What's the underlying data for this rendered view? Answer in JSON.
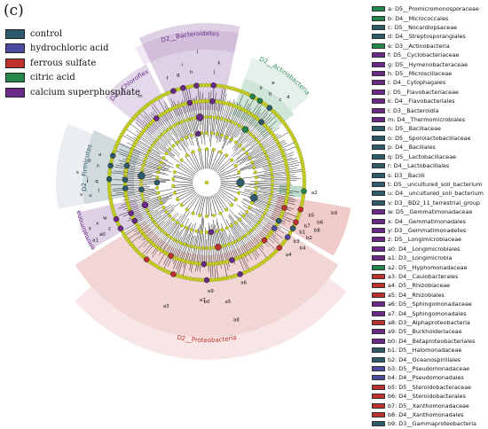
{
  "panel_label": "(c)",
  "colors": {
    "control": "#2e5b6b",
    "hydrochloric_acid": "#4c4ba0",
    "ferrous_sulfate": "#c0302c",
    "citric_acid": "#24874a",
    "calcium_superphosphate": "#6b2a8a",
    "node_yellow": "#c8d21e",
    "branch": "#111111"
  },
  "groups": [
    {
      "label": "control",
      "color": "#2e5b6b"
    },
    {
      "label": "hydrochloric acid",
      "color": "#4c4ba0"
    },
    {
      "label": "ferrous sulfate",
      "color": "#c0302c"
    },
    {
      "label": "citric acid",
      "color": "#24874a"
    },
    {
      "label": "calcium superphosphate",
      "color": "#6b2a8a"
    }
  ],
  "clade_labels": {
    "actinobacteria": "D2__Actinobacteria",
    "bacteroidetes": "D2__Bacteroidetes",
    "chloroflexi": "D2__Chloroflexi",
    "firmicutes": "D2__Firmicutes",
    "gemmatimonadetes": "D2__Gemmatimonadetes",
    "proteobacteria": "D2__Proteobacteria"
  },
  "taxa": [
    {
      "key": "a",
      "label": "a:  D5__Promicromonosporaceae",
      "color": "#24874a"
    },
    {
      "key": "b",
      "label": "b:  D4__Micrococcales",
      "color": "#24874a"
    },
    {
      "key": "c",
      "label": "c:  D5__Nocardiopsaceae",
      "color": "#2e5b6b"
    },
    {
      "key": "d",
      "label": "d:  D4__Streptosporangiales",
      "color": "#2e5b6b"
    },
    {
      "key": "e",
      "label": "e:  D3__Actinobacteria",
      "color": "#24874a"
    },
    {
      "key": "f",
      "label": "f:  D5__Cyclobacteriaceae",
      "color": "#6b2a8a"
    },
    {
      "key": "g",
      "label": "g:  D5__Hymenobacteraceae",
      "color": "#6b2a8a"
    },
    {
      "key": "h",
      "label": "h:  D5__Microscillaceae",
      "color": "#6b2a8a"
    },
    {
      "key": "i",
      "label": "i:  D4__Cytophagales",
      "color": "#6b2a8a"
    },
    {
      "key": "j",
      "label": "j:  D5__Flavobacteriaceae",
      "color": "#6b2a8a"
    },
    {
      "key": "k",
      "label": "k:  D4__Flavobacteriales",
      "color": "#6b2a8a"
    },
    {
      "key": "l",
      "label": "l:  D3__Bacteroidia",
      "color": "#6b2a8a"
    },
    {
      "key": "m",
      "label": "m:  D4__Thermomicrobiales",
      "color": "#6b2a8a"
    },
    {
      "key": "n",
      "label": "n:  D5__Bacillaceae",
      "color": "#2e5b6b"
    },
    {
      "key": "o",
      "label": "o:  D5__Sporolactobacillaceae",
      "color": "#2e5b6b"
    },
    {
      "key": "p",
      "label": "p:  D4__Bacillales",
      "color": "#2e5b6b"
    },
    {
      "key": "q",
      "label": "q:  D5__Lactobacillaceae",
      "color": "#2e5b6b"
    },
    {
      "key": "r",
      "label": "r:  D4__Lactobacillales",
      "color": "#2e5b6b"
    },
    {
      "key": "s",
      "label": "s:  D3__Bacilli",
      "color": "#2e5b6b"
    },
    {
      "key": "t",
      "label": "t:  D5__uncultured_soil_bacterium",
      "color": "#2e5b6b"
    },
    {
      "key": "u",
      "label": "u:  D4__uncultured_soil_bacterium",
      "color": "#2e5b6b"
    },
    {
      "key": "v",
      "label": "v:  D3__BD2_11_terrestrial_group",
      "color": "#2e5b6b"
    },
    {
      "key": "w",
      "label": "w:  D5__Gemmatimonadaceae",
      "color": "#6b2a8a"
    },
    {
      "key": "x",
      "label": "x:  D4__Gemmatimonadales",
      "color": "#6b2a8a"
    },
    {
      "key": "y",
      "label": "y:  D3__Gemmatimonadetes",
      "color": "#6b2a8a"
    },
    {
      "key": "z",
      "label": "z:  D5__Longimicrobiaceae",
      "color": "#6b2a8a"
    },
    {
      "key": "a0",
      "label": "a0:  D4__Longimicrobiales",
      "color": "#6b2a8a"
    },
    {
      "key": "a1",
      "label": "a1:  D3__Longimicrobia",
      "color": "#6b2a8a"
    },
    {
      "key": "a2",
      "label": "a2:  D5__Hyphomonadaceae",
      "color": "#24874a"
    },
    {
      "key": "a3",
      "label": "a3:  D4__Caulobacterales",
      "color": "#c0302c"
    },
    {
      "key": "a4",
      "label": "a4:  D5__Rhizobiaceae",
      "color": "#c0302c"
    },
    {
      "key": "a5",
      "label": "a5:  D4__Rhizobiales",
      "color": "#c0302c"
    },
    {
      "key": "a6",
      "label": "a6:  D5__Sphingomonadaceae",
      "color": "#6b2a8a"
    },
    {
      "key": "a7",
      "label": "a7:  D4__Sphingomonadales",
      "color": "#6b2a8a"
    },
    {
      "key": "a8",
      "label": "a8:  D3__Alphaproteobacteria",
      "color": "#c0302c"
    },
    {
      "key": "a9",
      "label": "a9:  D5__Burkholderiaceae",
      "color": "#6b2a8a"
    },
    {
      "key": "b0",
      "label": "b0:  D4__Betaproteobacteriales",
      "color": "#6b2a8a"
    },
    {
      "key": "b1",
      "label": "b1:  D5__Halomonadaceae",
      "color": "#2e5b6b"
    },
    {
      "key": "b2",
      "label": "b2:  D4__Oceanospirillales",
      "color": "#2e5b6b"
    },
    {
      "key": "b3",
      "label": "b3:  D5__Pseudomonadaceae",
      "color": "#4c4ba0"
    },
    {
      "key": "b4",
      "label": "b4:  D4__Pseudomonadales",
      "color": "#4c4ba0"
    },
    {
      "key": "b5",
      "label": "b5:  D5__Steroidobacteraceae",
      "color": "#c0302c"
    },
    {
      "key": "b6",
      "label": "b6:  D4__Steroidobacterales",
      "color": "#c0302c"
    },
    {
      "key": "b7",
      "label": "b7:  D5__Xanthomonadaceae",
      "color": "#c0302c"
    },
    {
      "key": "b8",
      "label": "b8:  D4__Xanthomonadales",
      "color": "#c0302c"
    },
    {
      "key": "b9",
      "label": "b9:  D3__Gammaproteobacteria",
      "color": "#2e5b6b"
    }
  ],
  "clade_node_letters": [
    "a",
    "b",
    "c",
    "d",
    "e",
    "f",
    "g",
    "h",
    "i",
    "j",
    "k",
    "l",
    "m",
    "n",
    "o",
    "p",
    "q",
    "r",
    "s",
    "t",
    "u",
    "v",
    "w",
    "x",
    "y",
    "z",
    "a0",
    "a1",
    "a2",
    "a3",
    "a4",
    "a5",
    "a6",
    "a7",
    "a8",
    "a9",
    "b0",
    "b1",
    "b2",
    "b3",
    "b4",
    "b5",
    "b6",
    "b7",
    "b8",
    "b9"
  ]
}
